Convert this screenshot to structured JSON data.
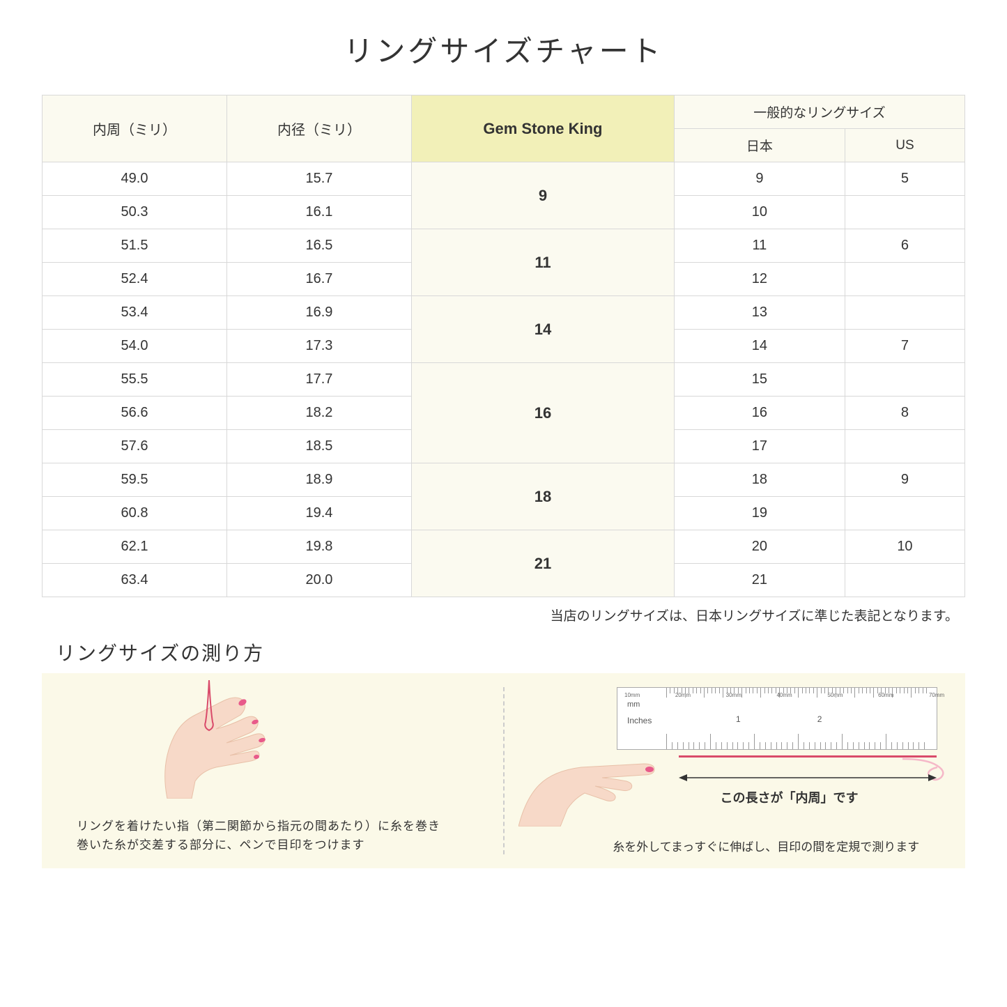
{
  "title": "リングサイズチャート",
  "headers": {
    "col1": "内周（ミリ）",
    "col2": "内径（ミリ）",
    "col3": "Gem Stone King",
    "col4_top": "一般的なリングサイズ",
    "col4_jp": "日本",
    "col4_us": "US"
  },
  "rows": [
    {
      "c": "49.0",
      "d": "15.7",
      "g": "9",
      "gspan": 2,
      "jp": "9",
      "us": "5"
    },
    {
      "c": "50.3",
      "d": "16.1",
      "jp": "10",
      "us": ""
    },
    {
      "c": "51.5",
      "d": "16.5",
      "g": "11",
      "gspan": 2,
      "jp": "11",
      "us": "6"
    },
    {
      "c": "52.4",
      "d": "16.7",
      "jp": "12",
      "us": ""
    },
    {
      "c": "53.4",
      "d": "16.9",
      "g": "14",
      "gspan": 2,
      "jp": "13",
      "us": ""
    },
    {
      "c": "54.0",
      "d": "17.3",
      "jp": "14",
      "us": "7"
    },
    {
      "c": "55.5",
      "d": "17.7",
      "g": "16",
      "gspan": 3,
      "jp": "15",
      "us": ""
    },
    {
      "c": "56.6",
      "d": "18.2",
      "jp": "16",
      "us": "8"
    },
    {
      "c": "57.6",
      "d": "18.5",
      "jp": "17",
      "us": ""
    },
    {
      "c": "59.5",
      "d": "18.9",
      "g": "18",
      "gspan": 2,
      "jp": "18",
      "us": "9"
    },
    {
      "c": "60.8",
      "d": "19.4",
      "jp": "19",
      "us": ""
    },
    {
      "c": "62.1",
      "d": "19.8",
      "g": "21",
      "gspan": 2,
      "jp": "20",
      "us": "10"
    },
    {
      "c": "63.4",
      "d": "20.0",
      "jp": "21",
      "us": ""
    }
  ],
  "note": "当店のリングサイズは、日本リングサイズに準じた表記となります。",
  "howto": {
    "title": "リングサイズの測り方",
    "left_caption_1": "リングを着けたい指（第二関節から指元の間あたり）に糸を巻き",
    "left_caption_2": "巻いた糸が交差する部分に、ペンで目印をつけます",
    "right_arrow_label": "この長さが「内周」です",
    "right_caption": "糸を外してまっすぐに伸ばし、目印の間を定規で測ります",
    "ruler_mm_label": "mm",
    "ruler_in_label": "Inches",
    "ruler_mm_ticks": [
      "10mm",
      "20mm",
      "30mm",
      "40mm",
      "50mm",
      "60mm",
      "70mm"
    ],
    "ruler_in_nums": [
      "1",
      "2"
    ]
  },
  "colors": {
    "header_bg": "#fbfaf0",
    "gsk_bg": "#f2f0b8",
    "panel_bg": "#fbf9e8",
    "border": "#d8d8d8",
    "skin": "#f7d9c8",
    "nail": "#e85a8a",
    "thread": "#d94a6a"
  }
}
